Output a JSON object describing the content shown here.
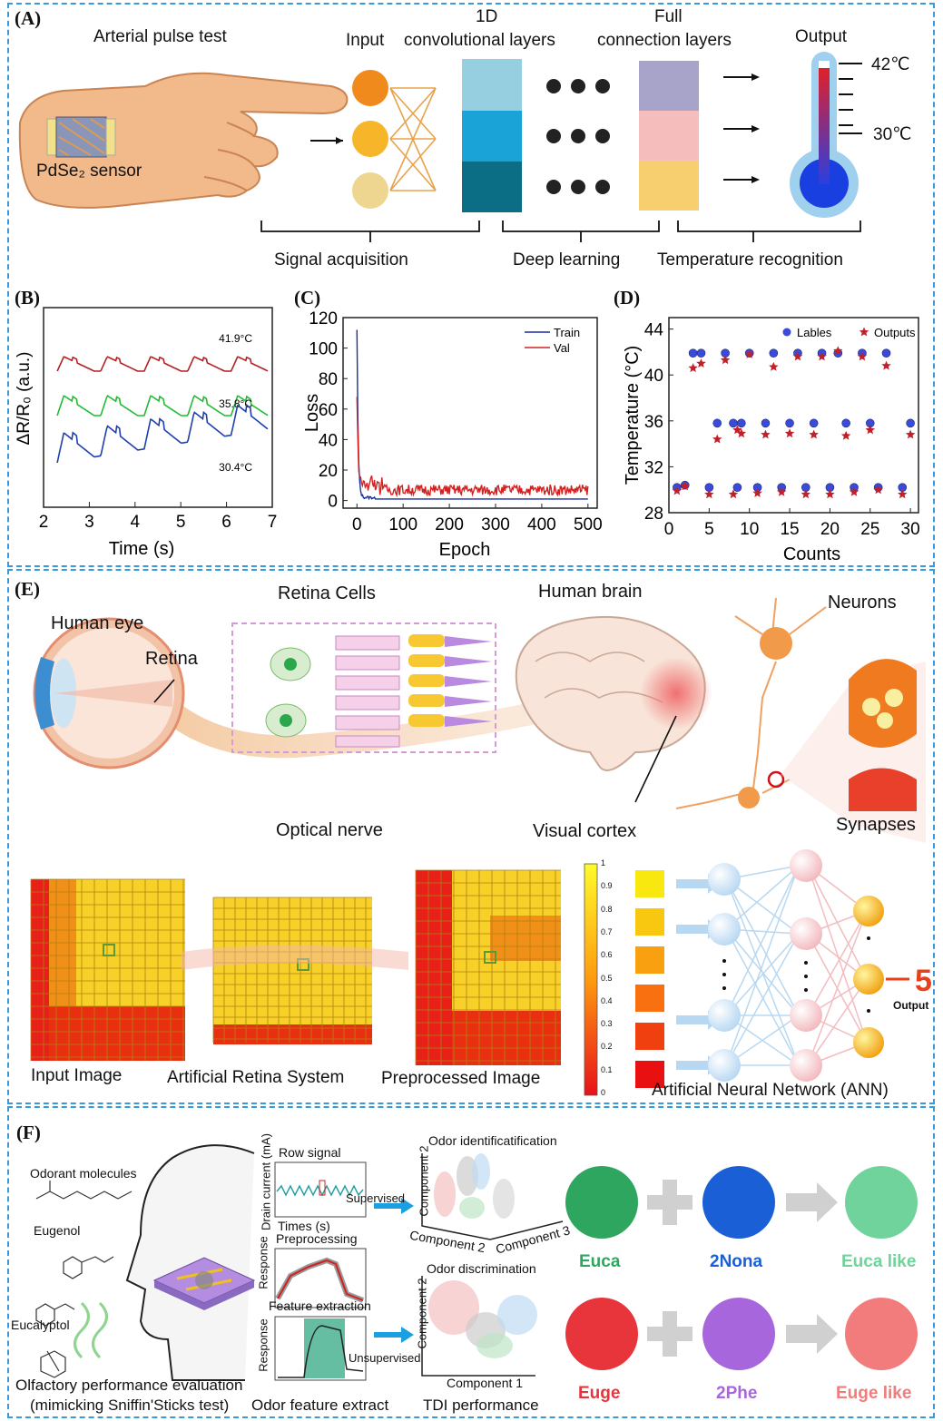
{
  "panel_a": {
    "label": "(A)",
    "arterial_pulse_test": "Arterial pulse test",
    "sensor": "PdSe₂ sensor",
    "input": "Input",
    "conv_layers_1": "1D",
    "conv_layers_2": "convolutional layers",
    "full_layers_1": "Full",
    "full_layers_2": "connection layers",
    "output": "Output",
    "temp_high": "42℃",
    "temp_low": "30℃",
    "signal_acquisition": "Signal acquisition",
    "deep_learning": "Deep learning",
    "temperature_recognition": "Temperature recognition"
  },
  "panel_b": {
    "label": "(B)"
  },
  "panel_c": {
    "label": "(C)"
  },
  "panel_d": {
    "label": "(D)"
  },
  "panel_e": {
    "label": "(E)",
    "retina_cells": "Retina Cells",
    "human_brain": "Human brain",
    "neurons": "Neurons",
    "human_eye": "Human eye",
    "retina": "Retina",
    "optical_nerve": "Optical nerve",
    "visual_cortex": "Visual cortex",
    "synapses": "Synapses",
    "input_image": "Input Image",
    "artificial_retina": "Artificial Retina System",
    "preprocessed_image": "Preprocessed Image",
    "ann": "Artificial Neural Network (ANN)",
    "output_digit": "5",
    "output_label": "Output",
    "colorbar_ticks": [
      "1",
      "0.9",
      "0.8",
      "0.7",
      "0.6",
      "0.5",
      "0.4",
      "0.3",
      "0.2",
      "0.1",
      "0"
    ]
  },
  "panel_f": {
    "label": "(F)",
    "odorant_molecules": "Odorant molecules",
    "eugenol": "Eugenol",
    "eucalyptol": "Eucalyptol",
    "olfactory_1": "Olfactory performance evaluation",
    "olfactory_2": "(mimicking Sniffin'Sticks test)",
    "row_signal": "Row signal",
    "drain_current": "Drain current (mA)",
    "times": "Times (s)",
    "preprocessing": "Preprocessing",
    "response": "Response",
    "feature_extraction": "Feature extraction",
    "odor_feature_extract": "Odor feature extract",
    "supervised": "Supervised",
    "unsupervised": "Unsupervised",
    "odor_identification": "Odor identificatification",
    "odor_discrimination": "Odor discrimination",
    "component_1": "Component 1",
    "component_2": "Component 2",
    "component_3": "Component 3",
    "tdi_performance": "TDI performance",
    "euca": "Euca",
    "nona": "2Nona",
    "euca_like": "Euca like",
    "euge": "Euge",
    "phe": "2Phe",
    "euge_like": "Euge like",
    "color_euca": "#2fa660",
    "color_nona": "#1a5fd6",
    "color_euca_like": "#6fd39b",
    "color_euge": "#e8343b",
    "color_phe": "#a766dc",
    "color_euge_like": "#f27b7b"
  },
  "chart_data": [
    {
      "id": "B",
      "type": "line",
      "xlabel": "Time (s)",
      "ylabel": "ΔR/R₀ (a.u.)",
      "xlim": [
        2,
        7
      ],
      "xticks": [
        "2",
        "3",
        "4",
        "5",
        "6",
        "7"
      ],
      "series": [
        {
          "name": "41.9°C",
          "color": "#b22222"
        },
        {
          "name": "35.8°C",
          "color": "#22bb33"
        },
        {
          "name": "30.4°C",
          "color": "#1f3fae"
        }
      ]
    },
    {
      "id": "C",
      "type": "line",
      "xlabel": "Epoch",
      "ylabel": "Loss",
      "xlim": [
        -30,
        520
      ],
      "ylim": [
        0,
        120
      ],
      "xticks": [
        "0",
        "100",
        "200",
        "300",
        "400",
        "500"
      ],
      "yticks": [
        "0",
        "20",
        "40",
        "60",
        "80",
        "100",
        "120"
      ],
      "series": [
        {
          "name": "Train",
          "color": "#1a2fa0",
          "start": 112,
          "plateau": 1
        },
        {
          "name": "Val",
          "color": "#d42020",
          "start": 68,
          "plateau": 7
        }
      ]
    },
    {
      "id": "D",
      "type": "scatter",
      "xlabel": "Counts",
      "ylabel": "Temperature (°C)",
      "xlim": [
        0,
        31
      ],
      "ylim": [
        28,
        45
      ],
      "xticks": [
        "0",
        "5",
        "10",
        "15",
        "20",
        "25",
        "30"
      ],
      "yticks": [
        "28",
        "32",
        "36",
        "40",
        "44"
      ],
      "series": [
        {
          "name": "Lables",
          "color": "#3a4ad9",
          "points": [
            [
              1,
              30.2
            ],
            [
              2,
              30.4
            ],
            [
              3,
              41.9
            ],
            [
              4,
              41.9
            ],
            [
              5,
              30.2
            ],
            [
              6,
              35.8
            ],
            [
              7,
              41.9
            ],
            [
              8,
              35.8
            ],
            [
              8.5,
              30.2
            ],
            [
              9,
              35.8
            ],
            [
              10,
              41.9
            ],
            [
              11,
              30.2
            ],
            [
              12,
              35.8
            ],
            [
              13,
              41.9
            ],
            [
              14,
              30.2
            ],
            [
              15,
              35.8
            ],
            [
              16,
              41.9
            ],
            [
              17,
              30.2
            ],
            [
              18,
              35.8
            ],
            [
              19,
              41.9
            ],
            [
              20,
              30.2
            ],
            [
              21,
              41.9
            ],
            [
              22,
              35.8
            ],
            [
              23,
              30.2
            ],
            [
              24,
              41.9
            ],
            [
              25,
              35.8
            ],
            [
              26,
              30.2
            ],
            [
              27,
              41.9
            ],
            [
              29,
              30.2
            ],
            [
              30,
              35.8
            ]
          ]
        },
        {
          "name": "Outputs",
          "color": "#c0202a",
          "points": [
            [
              1,
              29.9
            ],
            [
              2,
              30.3
            ],
            [
              3,
              40.6
            ],
            [
              4,
              41.0
            ],
            [
              5,
              29.6
            ],
            [
              6,
              34.4
            ],
            [
              7,
              41.3
            ],
            [
              8,
              29.6
            ],
            [
              8.5,
              35.2
            ],
            [
              9,
              34.9
            ],
            [
              10,
              41.8
            ],
            [
              11,
              29.7
            ],
            [
              12,
              34.8
            ],
            [
              13,
              40.7
            ],
            [
              14,
              29.8
            ],
            [
              15,
              34.9
            ],
            [
              16,
              41.6
            ],
            [
              17,
              29.6
            ],
            [
              18,
              34.8
            ],
            [
              19,
              41.6
            ],
            [
              20,
              29.6
            ],
            [
              21,
              42.1
            ],
            [
              22,
              34.7
            ],
            [
              23,
              29.8
            ],
            [
              24,
              41.6
            ],
            [
              25,
              35.2
            ],
            [
              26,
              30.0
            ],
            [
              27,
              40.8
            ],
            [
              29,
              29.6
            ],
            [
              30,
              34.8
            ]
          ]
        }
      ]
    }
  ]
}
